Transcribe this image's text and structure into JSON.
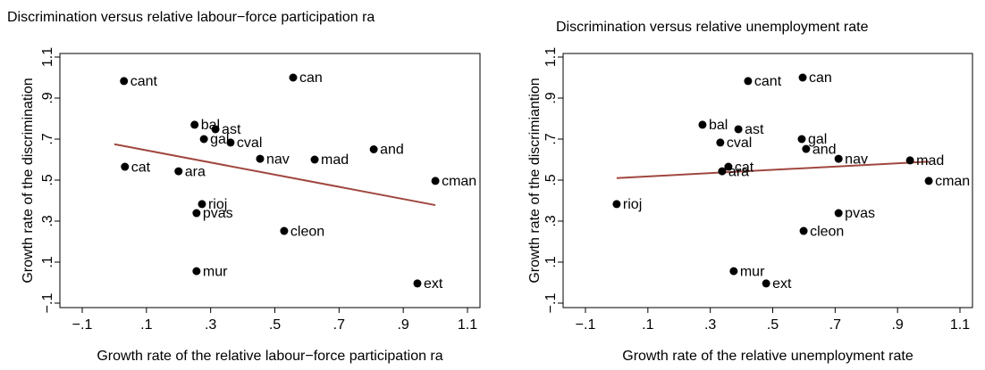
{
  "chart_data": [
    {
      "type": "scatter",
      "title": "Discrimination versus relative labour−force participation ra",
      "x_label": "Growth rate of the relative labour−force participation ra",
      "y_label": "Growth rate of the discrimination",
      "xlim": [
        -0.1,
        1.1
      ],
      "ylim": [
        -0.1,
        1.1
      ],
      "xticks": [
        {
          "value": -0.1,
          "label": "−.1"
        },
        {
          "value": 0.1,
          "label": ".1"
        },
        {
          "value": 0.3,
          "label": ".3"
        },
        {
          "value": 0.5,
          "label": ".5"
        },
        {
          "value": 0.7,
          "label": ".7"
        },
        {
          "value": 0.9,
          "label": ".9"
        },
        1.1
      ],
      "yticks": [
        {
          "value": -0.1,
          "label": "−.1"
        },
        {
          "value": 0.1,
          "label": ".1"
        },
        {
          "value": 0.3,
          "label": ".3"
        },
        {
          "value": 0.5,
          "label": ".5"
        },
        {
          "value": 0.7,
          "label": ".7"
        },
        {
          "value": 0.9,
          "label": ".9"
        },
        1.1
      ],
      "color": "#000000",
      "point_labels": [
        "cant",
        "can",
        "bal",
        "ast",
        "gal",
        "cval",
        "nav",
        "mad",
        "and",
        "cat",
        "ara",
        "cman",
        "rioj",
        "pvas",
        "cleon",
        "mur",
        "ext"
      ],
      "x": [
        0.03,
        0.557,
        0.25,
        0.315,
        0.279,
        0.362,
        0.454,
        0.624,
        0.808,
        0.033,
        0.2,
        1.0,
        0.273,
        0.256,
        0.529,
        0.256,
        0.944
      ],
      "values": [
        0.983,
        1.0,
        0.77,
        0.748,
        0.7,
        0.683,
        0.604,
        0.6,
        0.65,
        0.565,
        0.543,
        0.496,
        0.383,
        0.339,
        0.252,
        0.056,
        -0.004
      ],
      "fit": {
        "color": "#a0473f",
        "x": [
          0,
          1
        ],
        "values": [
          0.675,
          0.378
        ]
      }
    },
    {
      "type": "scatter",
      "title": "Discrimination versus relative unemployment rate",
      "x_label": "Growth rate of the relative unemployment rate",
      "y_label": "Growth rate of the discrimiantion",
      "xlim": [
        -0.1,
        1.1
      ],
      "ylim": [
        -0.1,
        1.1
      ],
      "xticks": [
        {
          "value": -0.1,
          "label": "−.1"
        },
        {
          "value": 0.1,
          "label": ".1"
        },
        {
          "value": 0.3,
          "label": ".3"
        },
        {
          "value": 0.5,
          "label": ".5"
        },
        {
          "value": 0.7,
          "label": ".7"
        },
        {
          "value": 0.9,
          "label": ".9"
        },
        1.1
      ],
      "yticks": [
        {
          "value": -0.1,
          "label": "−.1"
        },
        {
          "value": 0.1,
          "label": ".1"
        },
        {
          "value": 0.3,
          "label": ".3"
        },
        {
          "value": 0.5,
          "label": ".5"
        },
        {
          "value": 0.7,
          "label": ".7"
        },
        {
          "value": 0.9,
          "label": ".9"
        },
        1.1
      ],
      "color": "#000000",
      "point_labels": [
        "cant",
        "can",
        "bal",
        "ast",
        "gal",
        "cval",
        "nav",
        "mad",
        "and",
        "cat",
        "ara",
        "cman",
        "rioj",
        "pvas",
        "cleon",
        "mur",
        "ext"
      ],
      "x": [
        0.421,
        0.596,
        0.275,
        0.39,
        0.593,
        0.332,
        0.711,
        0.94,
        0.607,
        0.358,
        0.338,
        1.0,
        0.0,
        0.711,
        0.599,
        0.375,
        0.479
      ],
      "values": [
        0.983,
        1.0,
        0.77,
        0.748,
        0.7,
        0.683,
        0.604,
        0.596,
        0.652,
        0.565,
        0.543,
        0.496,
        0.383,
        0.339,
        0.252,
        0.056,
        -0.004
      ],
      "fit": {
        "color": "#a0473f",
        "x": [
          0,
          1
        ],
        "values": [
          0.51,
          0.59
        ]
      }
    }
  ]
}
